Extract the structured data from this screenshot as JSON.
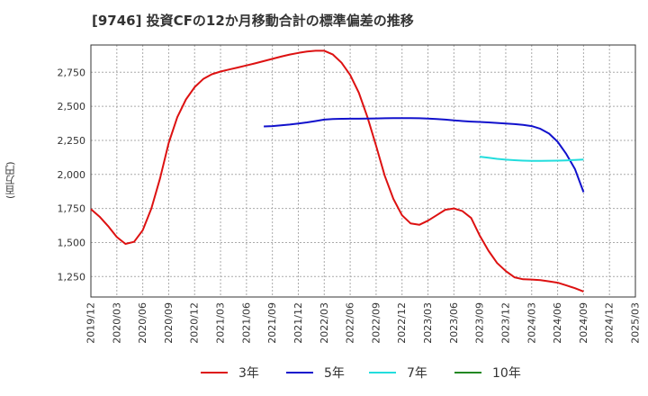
{
  "chart_data": {
    "type": "line",
    "title": "[9746]  投資CFの12か月移動合計の標準偏差の推移",
    "xlabel": "",
    "ylabel": "(百万円)",
    "x_ticks": [
      "2019/12",
      "2020/03",
      "2020/06",
      "2020/09",
      "2020/12",
      "2021/03",
      "2021/06",
      "2021/09",
      "2021/12",
      "2022/03",
      "2022/06",
      "2022/09",
      "2022/12",
      "2023/03",
      "2023/06",
      "2023/09",
      "2023/12",
      "2024/03",
      "2024/06",
      "2024/09",
      "2024/12",
      "2025/03"
    ],
    "y_ticks": [
      1250,
      1500,
      1750,
      2000,
      2250,
      2500,
      2750
    ],
    "ylim": [
      1100,
      2950
    ],
    "grid": true,
    "legend_position": "bottom",
    "series": [
      {
        "name": "3年",
        "color": "#dd1111",
        "points": [
          [
            "2019/12",
            1745
          ],
          [
            "2020/01",
            1690
          ],
          [
            "2020/02",
            1620
          ],
          [
            "2020/03",
            1540
          ],
          [
            "2020/04",
            1490
          ],
          [
            "2020/05",
            1505
          ],
          [
            "2020/06",
            1590
          ],
          [
            "2020/07",
            1750
          ],
          [
            "2020/08",
            1970
          ],
          [
            "2020/09",
            2230
          ],
          [
            "2020/10",
            2420
          ],
          [
            "2020/11",
            2550
          ],
          [
            "2020/12",
            2640
          ],
          [
            "2021/01",
            2700
          ],
          [
            "2021/02",
            2735
          ],
          [
            "2021/03",
            2755
          ],
          [
            "2021/04",
            2770
          ],
          [
            "2021/05",
            2785
          ],
          [
            "2021/06",
            2800
          ],
          [
            "2021/07",
            2815
          ],
          [
            "2021/08",
            2832
          ],
          [
            "2021/09",
            2848
          ],
          [
            "2021/10",
            2865
          ],
          [
            "2021/11",
            2880
          ],
          [
            "2021/12",
            2892
          ],
          [
            "2022/01",
            2902
          ],
          [
            "2022/02",
            2908
          ],
          [
            "2022/03",
            2908
          ],
          [
            "2022/04",
            2880
          ],
          [
            "2022/05",
            2820
          ],
          [
            "2022/06",
            2730
          ],
          [
            "2022/07",
            2600
          ],
          [
            "2022/08",
            2420
          ],
          [
            "2022/09",
            2210
          ],
          [
            "2022/10",
            1990
          ],
          [
            "2022/11",
            1820
          ],
          [
            "2022/12",
            1700
          ],
          [
            "2023/01",
            1640
          ],
          [
            "2023/02",
            1630
          ],
          [
            "2023/03",
            1660
          ],
          [
            "2023/04",
            1700
          ],
          [
            "2023/05",
            1740
          ],
          [
            "2023/06",
            1750
          ],
          [
            "2023/07",
            1730
          ],
          [
            "2023/08",
            1680
          ],
          [
            "2023/09",
            1550
          ],
          [
            "2023/10",
            1440
          ],
          [
            "2023/11",
            1350
          ],
          [
            "2023/12",
            1290
          ],
          [
            "2024/01",
            1245
          ],
          [
            "2024/02",
            1230
          ],
          [
            "2024/03",
            1228
          ],
          [
            "2024/04",
            1224
          ],
          [
            "2024/05",
            1215
          ],
          [
            "2024/06",
            1205
          ],
          [
            "2024/07",
            1185
          ],
          [
            "2024/08",
            1165
          ],
          [
            "2024/09",
            1140
          ]
        ]
      },
      {
        "name": "5年",
        "color": "#1111cc",
        "points": [
          [
            "2021/08",
            2352
          ],
          [
            "2021/09",
            2355
          ],
          [
            "2021/10",
            2360
          ],
          [
            "2021/11",
            2366
          ],
          [
            "2021/12",
            2374
          ],
          [
            "2022/01",
            2382
          ],
          [
            "2022/02",
            2392
          ],
          [
            "2022/03",
            2402
          ],
          [
            "2022/04",
            2406
          ],
          [
            "2022/05",
            2408
          ],
          [
            "2022/06",
            2409
          ],
          [
            "2022/07",
            2409
          ],
          [
            "2022/08",
            2410
          ],
          [
            "2022/09",
            2411
          ],
          [
            "2022/10",
            2412
          ],
          [
            "2022/11",
            2413
          ],
          [
            "2022/12",
            2413
          ],
          [
            "2023/01",
            2413
          ],
          [
            "2023/02",
            2412
          ],
          [
            "2023/03",
            2410
          ],
          [
            "2023/04",
            2407
          ],
          [
            "2023/05",
            2402
          ],
          [
            "2023/06",
            2397
          ],
          [
            "2023/07",
            2392
          ],
          [
            "2023/08",
            2388
          ],
          [
            "2023/09",
            2385
          ],
          [
            "2023/10",
            2382
          ],
          [
            "2023/11",
            2378
          ],
          [
            "2023/12",
            2374
          ],
          [
            "2024/01",
            2369
          ],
          [
            "2024/02",
            2363
          ],
          [
            "2024/03",
            2355
          ],
          [
            "2024/04",
            2335
          ],
          [
            "2024/05",
            2300
          ],
          [
            "2024/06",
            2240
          ],
          [
            "2024/07",
            2150
          ],
          [
            "2024/08",
            2040
          ],
          [
            "2024/09",
            1870
          ]
        ]
      },
      {
        "name": "7年",
        "color": "#22dddd",
        "points": [
          [
            "2023/09",
            2130
          ],
          [
            "2023/10",
            2122
          ],
          [
            "2023/11",
            2114
          ],
          [
            "2023/12",
            2108
          ],
          [
            "2024/01",
            2104
          ],
          [
            "2024/02",
            2101
          ],
          [
            "2024/03",
            2099
          ],
          [
            "2024/04",
            2099
          ],
          [
            "2024/05",
            2100
          ],
          [
            "2024/06",
            2101
          ],
          [
            "2024/07",
            2103
          ],
          [
            "2024/08",
            2106
          ],
          [
            "2024/09",
            2109
          ]
        ]
      },
      {
        "name": "10年",
        "color": "#228822",
        "points": []
      }
    ]
  }
}
